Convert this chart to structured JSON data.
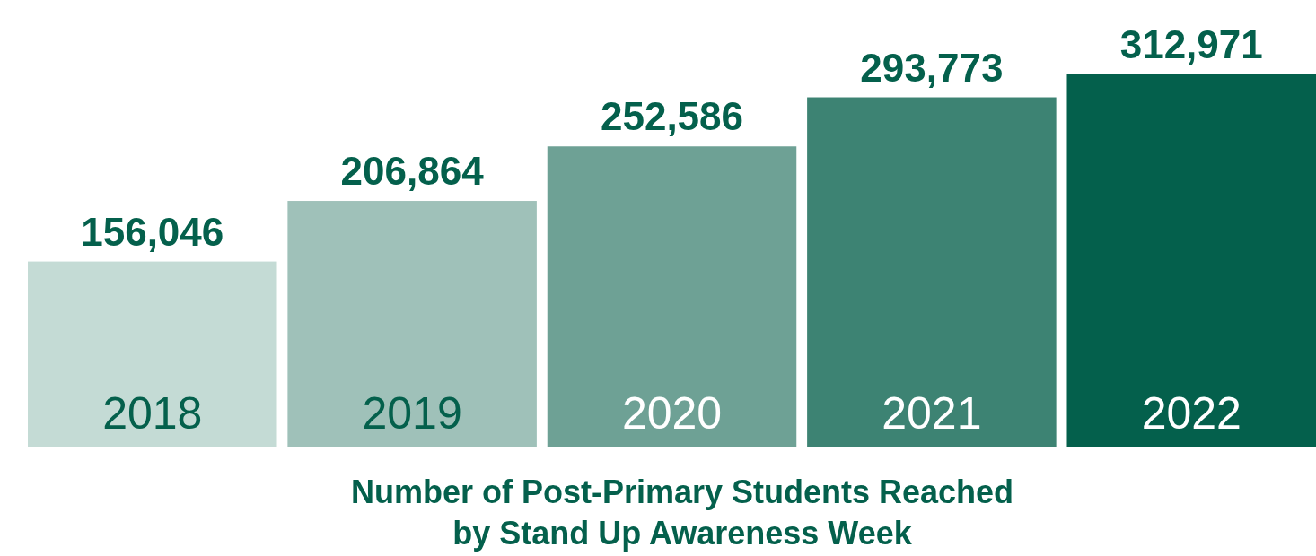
{
  "chart_data": {
    "type": "bar",
    "title": "Number of Post-Primary Students Reached by Stand Up Awareness Week",
    "categories": [
      "2018",
      "2019",
      "2020",
      "2021",
      "2022"
    ],
    "values": [
      156046,
      206864,
      252586,
      293773,
      312971
    ],
    "value_labels": [
      "156,046",
      "206,864",
      "252,586",
      "293,773",
      "312,971"
    ],
    "colors": [
      "#c4dbd5",
      "#9fc1b9",
      "#6ea195",
      "#3d8373",
      "#04604c"
    ]
  }
}
